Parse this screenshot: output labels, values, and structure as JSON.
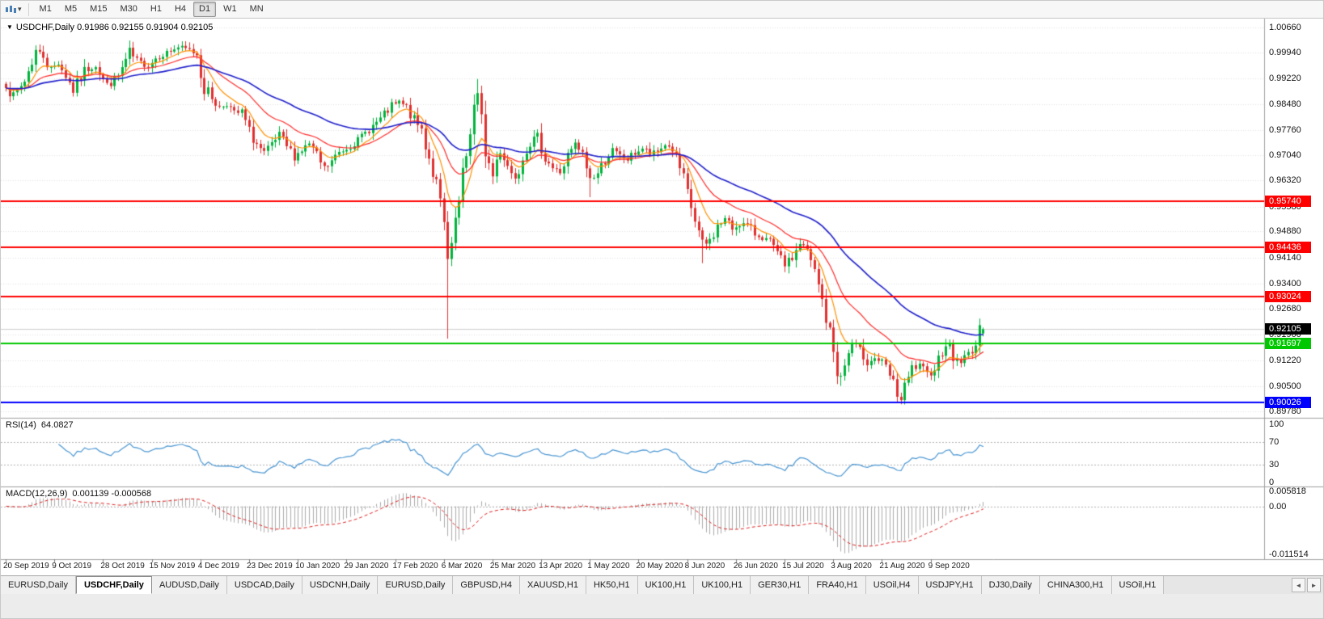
{
  "toolbar": {
    "timeframes": [
      "M1",
      "M5",
      "M15",
      "M30",
      "H1",
      "H4",
      "D1",
      "W1",
      "MN"
    ],
    "active_timeframe": "D1",
    "dropdown_caret": "▾"
  },
  "chart": {
    "collapse_icon": "▼",
    "symbol_period": "USDCHF,Daily",
    "ohlc_text": "0.91986 0.92155 0.91904 0.92105",
    "current_price": {
      "label": "0.92105",
      "value": 0.92105,
      "bg": "#000000"
    }
  },
  "rsi": {
    "label": "RSI(14)",
    "value_text": "64.0827",
    "axis": [
      "100",
      "70",
      "30",
      "0"
    ],
    "levels": [
      70,
      30
    ],
    "color": "#4A96D2"
  },
  "macd": {
    "label": "MACD(12,26,9)",
    "values_text": "0.001139 -0.000568",
    "axis": [
      "0.005818",
      "0.00",
      "-0.011514"
    ],
    "histogram_color": "#ABABAB",
    "signal_color": "#E02020"
  },
  "tabs": {
    "items": [
      "EURUSD,Daily",
      "USDCHF,Daily",
      "AUDUSD,Daily",
      "USDCAD,Daily",
      "USDCNH,Daily",
      "EURUSD,Daily",
      "GBPUSD,H4",
      "XAUUSD,H1",
      "HK50,H1",
      "UK100,H1",
      "UK100,H1",
      "GER30,H1",
      "FRA40,H1",
      "USOil,H4",
      "USDJPY,H1",
      "DJ30,Daily",
      "CHINA300,H1",
      "USOil,H1"
    ],
    "active_index": 1,
    "scroll_left_icon": "◄",
    "scroll_right_icon": "►"
  },
  "chart_data": {
    "type": "candlestick",
    "symbol": "USDCHF",
    "timeframe": "Daily",
    "last_ohlc": {
      "open": 0.91986,
      "high": 0.92155,
      "low": 0.91904,
      "close": 0.92105
    },
    "up_color": "#00B43C",
    "down_color": "#E03030",
    "grid_color": "#E3E3E3",
    "y_axis_ticks": [
      "1.00660",
      "0.99940",
      "0.99220",
      "0.98480",
      "0.97760",
      "0.97040",
      "0.96320",
      "0.95580",
      "0.94880",
      "0.94140",
      "0.93400",
      "0.92680",
      "0.91960",
      "0.91220",
      "0.90500",
      "0.89780"
    ],
    "x_axis_dates": [
      "20 Sep 2019",
      "9 Oct 2019",
      "28 Oct 2019",
      "15 Nov 2019",
      "4 Dec 2019",
      "23 Dec 2019",
      "10 Jan 2020",
      "29 Jan 2020",
      "17 Feb 2020",
      "6 Mar 2020",
      "25 Mar 2020",
      "13 Apr 2020",
      "1 May 2020",
      "20 May 2020",
      "8 Jun 2020",
      "26 Jun 2020",
      "15 Jul 2020",
      "3 Aug 2020",
      "21 Aug 2020",
      "9 Sep 2020"
    ],
    "bars_per_date_tick": 13,
    "horizontal_lines": [
      {
        "price": 0.9574,
        "label": "0.95740",
        "color": "#FF0000"
      },
      {
        "price": 0.94436,
        "label": "0.94436",
        "color": "#FF0000"
      },
      {
        "price": 0.93024,
        "label": "0.93024",
        "color": "#FF0000"
      },
      {
        "price": 0.91697,
        "label": "0.91697",
        "color": "#00C800"
      },
      {
        "price": 0.90026,
        "label": "0.90026",
        "color": "#0000FF"
      }
    ],
    "moving_averages": [
      {
        "period": 8,
        "color": "#FF9000",
        "width": 1.2
      },
      {
        "period": 21,
        "color": "#FF2A2A",
        "width": 1.2
      },
      {
        "period": 50,
        "color": "#2020CC",
        "width": 1.6
      }
    ],
    "price_anchors": [
      [
        0,
        0.99
      ],
      [
        2,
        0.9868
      ],
      [
        5,
        0.9915
      ],
      [
        8,
        1.0
      ],
      [
        10,
        0.9985
      ],
      [
        12,
        0.9945
      ],
      [
        14,
        0.9968
      ],
      [
        16,
        0.993
      ],
      [
        18,
        0.9888
      ],
      [
        21,
        0.9942
      ],
      [
        24,
        0.996
      ],
      [
        27,
        0.99
      ],
      [
        30,
        0.9928
      ],
      [
        33,
        0.9992
      ],
      [
        35,
        0.997
      ],
      [
        38,
        0.9958
      ],
      [
        40,
        0.998
      ],
      [
        43,
        0.9995
      ],
      [
        46,
        1.001
      ],
      [
        49,
        1.0002
      ],
      [
        51,
        0.999
      ],
      [
        53,
        0.99
      ],
      [
        55,
        0.9868
      ],
      [
        57,
        0.9838
      ],
      [
        59,
        0.9852
      ],
      [
        61,
        0.9818
      ],
      [
        63,
        0.9828
      ],
      [
        65,
        0.9765
      ],
      [
        67,
        0.9735
      ],
      [
        69,
        0.9705
      ],
      [
        71,
        0.9732
      ],
      [
        73,
        0.9758
      ],
      [
        75,
        0.9728
      ],
      [
        77,
        0.9702
      ],
      [
        79,
        0.9718
      ],
      [
        81,
        0.9736
      ],
      [
        83,
        0.97
      ],
      [
        85,
        0.9663
      ],
      [
        87,
        0.9686
      ],
      [
        89,
        0.9712
      ],
      [
        91,
        0.9724
      ],
      [
        94,
        0.9746
      ],
      [
        97,
        0.9778
      ],
      [
        100,
        0.9806
      ],
      [
        103,
        0.9842
      ],
      [
        105,
        0.9853
      ],
      [
        107,
        0.984
      ],
      [
        109,
        0.9801
      ],
      [
        111,
        0.9778
      ],
      [
        113,
        0.97
      ],
      [
        115,
        0.9618
      ],
      [
        117,
        0.95
      ],
      [
        118,
        0.94
      ],
      [
        119,
        0.9432
      ],
      [
        120,
        0.952
      ],
      [
        121,
        0.9562
      ],
      [
        122,
        0.964
      ],
      [
        123,
        0.9702
      ],
      [
        124,
        0.978
      ],
      [
        125,
        0.9842
      ],
      [
        126,
        0.9868
      ],
      [
        127,
        0.9798
      ],
      [
        128,
        0.972
      ],
      [
        129,
        0.9678
      ],
      [
        130,
        0.9645
      ],
      [
        131,
        0.969
      ],
      [
        132,
        0.9726
      ],
      [
        133,
        0.97
      ],
      [
        134,
        0.9676
      ],
      [
        135,
        0.9654
      ],
      [
        136,
        0.9645
      ],
      [
        137,
        0.967
      ],
      [
        138,
        0.9706
      ],
      [
        140,
        0.974
      ],
      [
        142,
        0.9757
      ],
      [
        144,
        0.97
      ],
      [
        146,
        0.9667
      ],
      [
        148,
        0.9655
      ],
      [
        150,
        0.97
      ],
      [
        152,
        0.9731
      ],
      [
        154,
        0.9706
      ],
      [
        156,
        0.9636
      ],
      [
        158,
        0.9652
      ],
      [
        160,
        0.9692
      ],
      [
        162,
        0.9716
      ],
      [
        164,
        0.9701
      ],
      [
        166,
        0.9691
      ],
      [
        168,
        0.9711
      ],
      [
        170,
        0.9723
      ],
      [
        172,
        0.9707
      ],
      [
        174,
        0.9713
      ],
      [
        176,
        0.9736
      ],
      [
        178,
        0.9719
      ],
      [
        180,
        0.9664
      ],
      [
        182,
        0.959
      ],
      [
        184,
        0.9519
      ],
      [
        186,
        0.9441
      ],
      [
        188,
        0.9463
      ],
      [
        190,
        0.9501
      ],
      [
        192,
        0.9523
      ],
      [
        194,
        0.9496
      ],
      [
        196,
        0.9511
      ],
      [
        198,
        0.9506
      ],
      [
        200,
        0.9481
      ],
      [
        202,
        0.9471
      ],
      [
        204,
        0.9459
      ],
      [
        206,
        0.9421
      ],
      [
        208,
        0.9396
      ],
      [
        210,
        0.9411
      ],
      [
        212,
        0.9456
      ],
      [
        214,
        0.9431
      ],
      [
        216,
        0.9371
      ],
      [
        218,
        0.9291
      ],
      [
        220,
        0.9195
      ],
      [
        222,
        0.91
      ],
      [
        223,
        0.9068
      ],
      [
        224,
        0.911
      ],
      [
        226,
        0.917
      ],
      [
        228,
        0.915
      ],
      [
        230,
        0.912
      ],
      [
        232,
        0.9128
      ],
      [
        234,
        0.9118
      ],
      [
        236,
        0.9078
      ],
      [
        238,
        0.9028
      ],
      [
        239,
        0.901
      ],
      [
        240,
        0.904
      ],
      [
        242,
        0.9096
      ],
      [
        244,
        0.9106
      ],
      [
        246,
        0.9081
      ],
      [
        248,
        0.9101
      ],
      [
        250,
        0.9151
      ],
      [
        251,
        0.9181
      ],
      [
        252,
        0.9151
      ],
      [
        253,
        0.9129
      ],
      [
        255,
        0.9119
      ],
      [
        257,
        0.9141
      ],
      [
        259,
        0.9166
      ],
      [
        260,
        0.9199
      ],
      [
        261,
        0.92105
      ]
    ],
    "bar_overrides": {
      "118": {
        "l": 0.9184
      },
      "126": {
        "h": 0.992
      },
      "156": {
        "l": 0.9585
      },
      "186": {
        "l": 0.9398
      },
      "223": {
        "l": 0.905
      },
      "239": {
        "l": 0.8998
      },
      "261": {
        "o": 0.91986,
        "h": 0.92155,
        "l": 0.91904,
        "c": 0.92105
      }
    }
  }
}
